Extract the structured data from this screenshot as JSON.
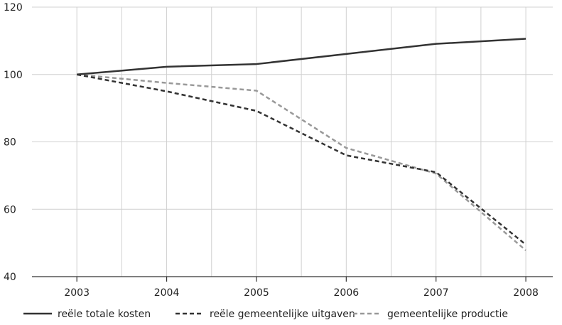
{
  "chart_data": {
    "type": "line",
    "title": "",
    "xlabel": "",
    "ylabel": "",
    "x": [
      2003,
      2004,
      2005,
      2006,
      2007,
      2008
    ],
    "ylim": [
      40,
      120
    ],
    "yticks": [
      40,
      60,
      80,
      100,
      120
    ],
    "grid": true,
    "legend_position": "bottom",
    "series": [
      {
        "name": "reële totale kosten",
        "values": [
          100,
          102.3,
          103.1,
          106.1,
          109.1,
          110.6
        ],
        "color": "#333333",
        "style": "solid"
      },
      {
        "name": "reële gemeentelijke uitgaven",
        "values": [
          100,
          95,
          89.2,
          76,
          71,
          49.5
        ],
        "color": "#333333",
        "style": "dashed"
      },
      {
        "name": "gemeentelijke productie",
        "values": [
          100,
          97.5,
          95.2,
          78.2,
          70.6,
          47.8
        ],
        "color": "#999999",
        "style": "dashed"
      }
    ]
  }
}
